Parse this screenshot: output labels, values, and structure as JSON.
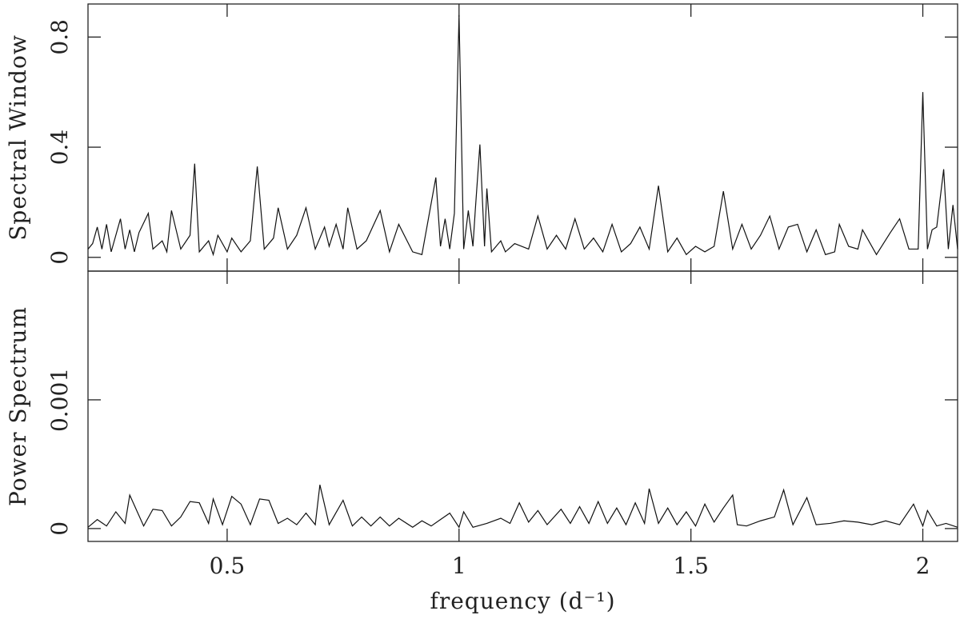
{
  "chart_data": [
    {
      "type": "line",
      "ylabel": "Spectral Window",
      "color": "#111",
      "ylim": [
        -0.05,
        0.92
      ],
      "yticks": [
        0,
        0.4,
        0.8
      ],
      "xlim": [
        0.2,
        2.075
      ],
      "xticks": [
        0.5,
        1,
        1.5,
        2
      ],
      "x": [
        0.2,
        0.21,
        0.22,
        0.23,
        0.24,
        0.25,
        0.27,
        0.28,
        0.29,
        0.3,
        0.31,
        0.33,
        0.34,
        0.36,
        0.37,
        0.38,
        0.4,
        0.42,
        0.43,
        0.44,
        0.46,
        0.47,
        0.48,
        0.5,
        0.51,
        0.53,
        0.55,
        0.565,
        0.58,
        0.6,
        0.61,
        0.63,
        0.65,
        0.67,
        0.69,
        0.71,
        0.72,
        0.735,
        0.75,
        0.76,
        0.78,
        0.8,
        0.83,
        0.85,
        0.87,
        0.9,
        0.92,
        0.935,
        0.95,
        0.96,
        0.97,
        0.98,
        0.99,
        1.0,
        1.01,
        1.02,
        1.03,
        1.035,
        1.045,
        1.055,
        1.06,
        1.07,
        1.09,
        1.1,
        1.12,
        1.15,
        1.17,
        1.19,
        1.21,
        1.23,
        1.25,
        1.27,
        1.29,
        1.31,
        1.33,
        1.35,
        1.37,
        1.39,
        1.41,
        1.43,
        1.45,
        1.47,
        1.49,
        1.51,
        1.53,
        1.55,
        1.57,
        1.59,
        1.61,
        1.63,
        1.65,
        1.67,
        1.69,
        1.71,
        1.73,
        1.75,
        1.77,
        1.79,
        1.81,
        1.82,
        1.84,
        1.86,
        1.87,
        1.9,
        1.93,
        1.95,
        1.97,
        1.99,
        2.0,
        2.01,
        2.02,
        2.03,
        2.045,
        2.055,
        2.065,
        2.075
      ],
      "values": [
        0.03,
        0.05,
        0.11,
        0.03,
        0.12,
        0.02,
        0.14,
        0.03,
        0.1,
        0.02,
        0.09,
        0.16,
        0.03,
        0.06,
        0.02,
        0.17,
        0.03,
        0.08,
        0.34,
        0.02,
        0.06,
        0.01,
        0.08,
        0.02,
        0.07,
        0.02,
        0.06,
        0.33,
        0.03,
        0.07,
        0.18,
        0.03,
        0.08,
        0.18,
        0.03,
        0.11,
        0.04,
        0.12,
        0.03,
        0.18,
        0.03,
        0.06,
        0.17,
        0.02,
        0.12,
        0.02,
        0.01,
        0.15,
        0.29,
        0.04,
        0.14,
        0.03,
        0.16,
        0.88,
        0.03,
        0.17,
        0.04,
        0.17,
        0.41,
        0.04,
        0.25,
        0.02,
        0.06,
        0.02,
        0.05,
        0.03,
        0.15,
        0.03,
        0.08,
        0.03,
        0.14,
        0.03,
        0.07,
        0.02,
        0.12,
        0.02,
        0.05,
        0.11,
        0.03,
        0.26,
        0.02,
        0.07,
        0.01,
        0.04,
        0.02,
        0.04,
        0.24,
        0.03,
        0.12,
        0.03,
        0.08,
        0.15,
        0.03,
        0.11,
        0.12,
        0.02,
        0.1,
        0.01,
        0.02,
        0.12,
        0.04,
        0.03,
        0.1,
        0.01,
        0.09,
        0.14,
        0.03,
        0.03,
        0.6,
        0.03,
        0.1,
        0.11,
        0.32,
        0.03,
        0.19,
        0.03
      ]
    },
    {
      "type": "line",
      "ylabel": "Power Spectrum",
      "xlabel": "frequency (d⁻¹)",
      "color": "#111",
      "ylim": [
        -0.0001,
        0.002
      ],
      "yticks": [
        0,
        0.001
      ],
      "xlim": [
        0.2,
        2.075
      ],
      "xticks": [
        0.5,
        1,
        1.5,
        2
      ],
      "x": [
        0.2,
        0.22,
        0.24,
        0.26,
        0.28,
        0.29,
        0.3,
        0.32,
        0.34,
        0.36,
        0.38,
        0.4,
        0.42,
        0.44,
        0.46,
        0.47,
        0.49,
        0.51,
        0.53,
        0.55,
        0.57,
        0.59,
        0.61,
        0.63,
        0.65,
        0.67,
        0.69,
        0.7,
        0.72,
        0.75,
        0.77,
        0.79,
        0.81,
        0.83,
        0.85,
        0.87,
        0.9,
        0.92,
        0.94,
        0.96,
        0.98,
        1.0,
        1.01,
        1.03,
        1.06,
        1.09,
        1.11,
        1.13,
        1.15,
        1.17,
        1.19,
        1.22,
        1.24,
        1.26,
        1.28,
        1.3,
        1.32,
        1.34,
        1.36,
        1.38,
        1.4,
        1.41,
        1.43,
        1.45,
        1.47,
        1.49,
        1.51,
        1.53,
        1.55,
        1.57,
        1.59,
        1.6,
        1.62,
        1.65,
        1.68,
        1.7,
        1.72,
        1.75,
        1.77,
        1.8,
        1.83,
        1.86,
        1.89,
        1.92,
        1.95,
        1.98,
        2.0,
        2.01,
        2.03,
        2.05,
        2.075
      ],
      "values": [
        1e-05,
        7e-05,
        2e-05,
        0.00013,
        4e-05,
        0.00026,
        0.00018,
        2e-05,
        0.00015,
        0.00014,
        2e-05,
        9e-05,
        0.00021,
        0.0002,
        4e-05,
        0.00023,
        3e-05,
        0.00025,
        0.00019,
        3e-05,
        0.00023,
        0.00022,
        4e-05,
        8e-05,
        3e-05,
        0.00012,
        3e-05,
        0.00034,
        3e-05,
        0.00022,
        2e-05,
        9e-05,
        2e-05,
        9e-05,
        2e-05,
        8e-05,
        1e-05,
        6e-05,
        2e-05,
        7e-05,
        0.00012,
        1e-05,
        0.00013,
        1e-05,
        4e-05,
        8e-05,
        4e-05,
        0.0002,
        5e-05,
        0.00014,
        3e-05,
        0.00015,
        4e-05,
        0.00017,
        4e-05,
        0.00021,
        4e-05,
        0.00016,
        3e-05,
        0.0002,
        4e-05,
        0.00031,
        4e-05,
        0.00016,
        3e-05,
        0.00013,
        2e-05,
        0.00019,
        5e-05,
        0.00016,
        0.00026,
        3e-05,
        2e-05,
        6e-05,
        9e-05,
        0.0003,
        3e-05,
        0.00024,
        3e-05,
        4e-05,
        6e-05,
        5e-05,
        3e-05,
        6e-05,
        3e-05,
        0.00019,
        2e-05,
        0.00014,
        2e-05,
        4e-05,
        1e-05
      ]
    }
  ]
}
